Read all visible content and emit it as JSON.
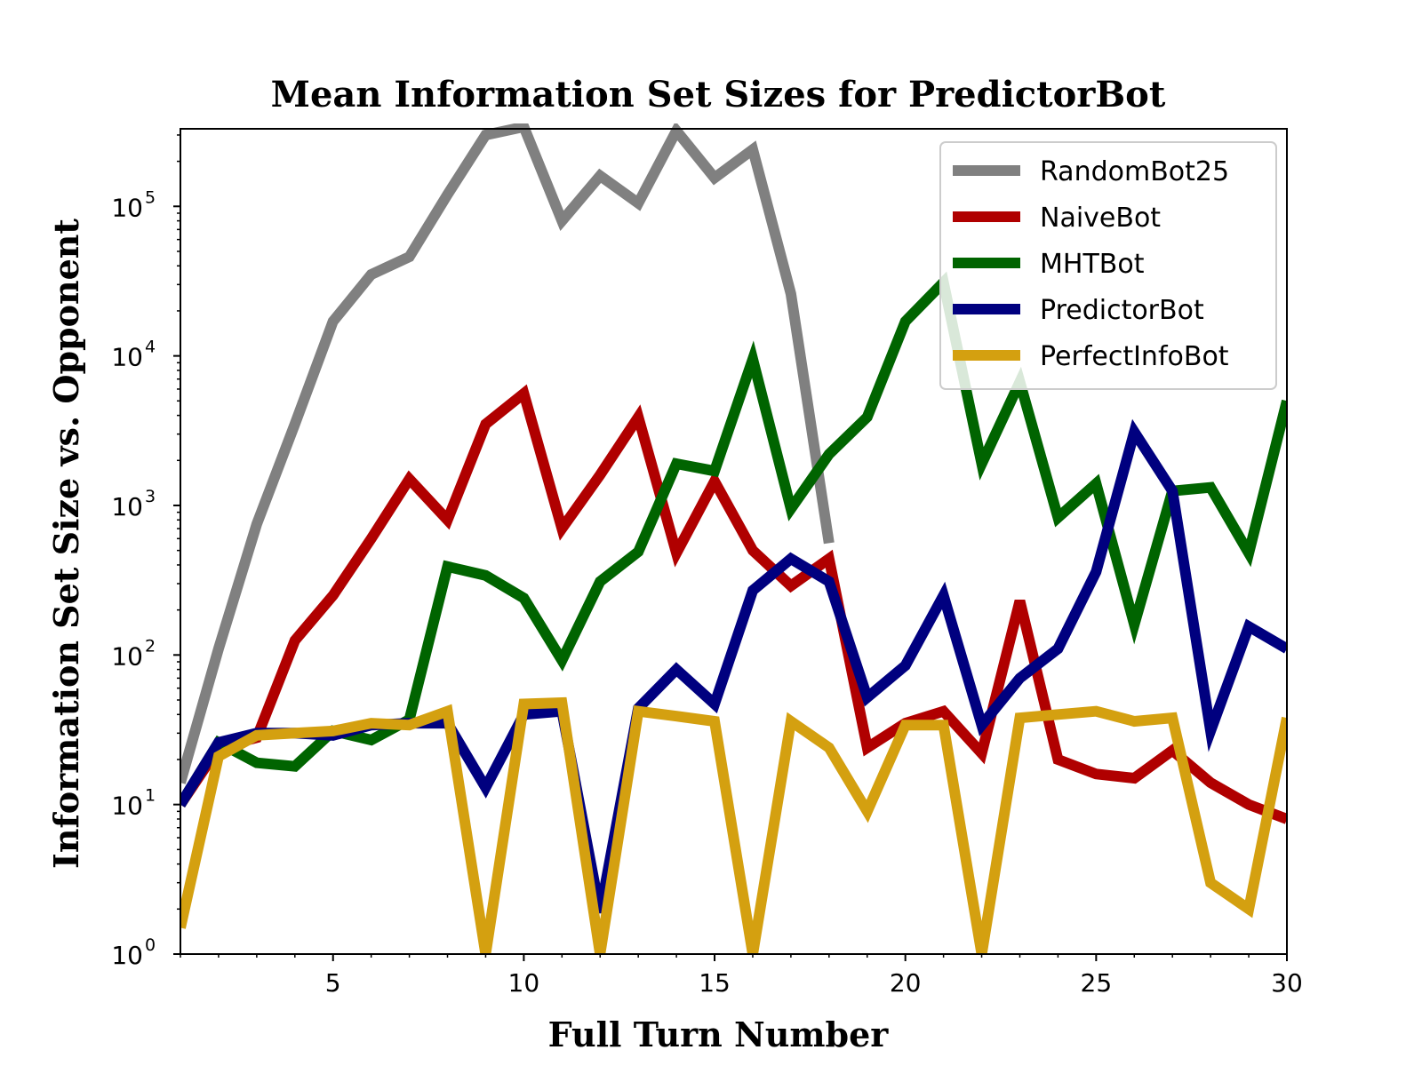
{
  "chart_data": {
    "type": "line",
    "title": "Mean Information Set Sizes for PredictorBot",
    "xlabel": "Full Turn Number",
    "ylabel": "Information Set Size vs. Opponent",
    "yscale": "log",
    "xlim": [
      1,
      30
    ],
    "ylim": [
      1,
      330000
    ],
    "xticks": [
      5,
      10,
      15,
      20,
      25,
      30
    ],
    "xtick_labels": [
      "5",
      "10",
      "15",
      "20",
      "25",
      "30"
    ],
    "yticks": [
      1,
      10,
      100,
      1000,
      10000,
      100000
    ],
    "ytick_labels": [
      {
        "base": "10",
        "exp": "0"
      },
      {
        "base": "10",
        "exp": "1"
      },
      {
        "base": "10",
        "exp": "2"
      },
      {
        "base": "10",
        "exp": "3"
      },
      {
        "base": "10",
        "exp": "4"
      },
      {
        "base": "10",
        "exp": "5"
      }
    ],
    "grid": false,
    "legend_position": "top-right",
    "series": [
      {
        "name": "RandomBot25",
        "color": "#808080",
        "x": [
          1,
          2,
          3,
          4,
          5,
          6,
          7,
          8,
          9,
          10,
          11,
          12,
          13,
          14,
          15,
          16,
          17,
          18
        ],
        "values": [
          14,
          110,
          750,
          3500,
          17000,
          35000,
          46000,
          120000,
          300000,
          340000,
          80000,
          160000,
          105000,
          320000,
          155000,
          240000,
          26000,
          560
        ]
      },
      {
        "name": "NaiveBot",
        "color": "#b00000",
        "x": [
          1,
          2,
          3,
          4,
          5,
          6,
          7,
          8,
          9,
          10,
          11,
          12,
          13,
          14,
          15,
          16,
          17,
          18,
          19,
          20,
          21,
          22,
          23,
          24,
          25,
          26,
          27,
          28,
          29,
          30
        ],
        "values": [
          10,
          24,
          28,
          125,
          250,
          600,
          1500,
          800,
          3500,
          5600,
          700,
          1600,
          3900,
          480,
          1450,
          500,
          290,
          440,
          24,
          35,
          42,
          22,
          230,
          20,
          16,
          15,
          23,
          14,
          10,
          8
        ]
      },
      {
        "name": "MHTBot",
        "color": "#006400",
        "x": [
          1,
          2,
          3,
          4,
          5,
          6,
          7,
          8,
          9,
          10,
          11,
          12,
          13,
          14,
          15,
          16,
          17,
          18,
          19,
          20,
          21,
          22,
          23,
          24,
          25,
          26,
          27,
          28,
          29,
          30
        ],
        "values": [
          10,
          26,
          19,
          18,
          31,
          27,
          37,
          390,
          340,
          240,
          92,
          310,
          490,
          1900,
          1700,
          9500,
          950,
          2200,
          3900,
          17000,
          31000,
          1900,
          6700,
          830,
          1400,
          160,
          1250,
          1320,
          480,
          5000
        ]
      },
      {
        "name": "PredictorBot",
        "color": "#00007f",
        "x": [
          1,
          2,
          3,
          4,
          5,
          6,
          7,
          8,
          9,
          10,
          11,
          12,
          13,
          14,
          15,
          16,
          17,
          18,
          19,
          20,
          21,
          22,
          23,
          24,
          25,
          26,
          27,
          28,
          29,
          30
        ],
        "values": [
          10,
          26,
          30,
          30,
          29,
          34,
          35,
          35,
          13,
          40,
          42,
          1.9,
          44,
          80,
          47,
          270,
          440,
          310,
          52,
          85,
          250,
          34,
          70,
          110,
          360,
          3100,
          1250,
          31,
          155,
          110
        ]
      },
      {
        "name": "PerfectInfoBot",
        "color": "#d4a010",
        "x": [
          1,
          2,
          3,
          4,
          5,
          6,
          7,
          8,
          9,
          10,
          11,
          12,
          13,
          14,
          15,
          16,
          17,
          18,
          19,
          20,
          21,
          22,
          23,
          24,
          25,
          26,
          27,
          28,
          29,
          30
        ],
        "values": [
          1.5,
          21,
          29,
          30,
          31,
          35,
          34,
          42,
          1,
          47,
          48,
          1,
          42,
          39,
          36,
          1,
          36,
          24,
          9,
          34,
          34,
          1,
          38,
          40,
          42,
          36,
          38,
          3,
          2,
          38
        ]
      }
    ]
  }
}
